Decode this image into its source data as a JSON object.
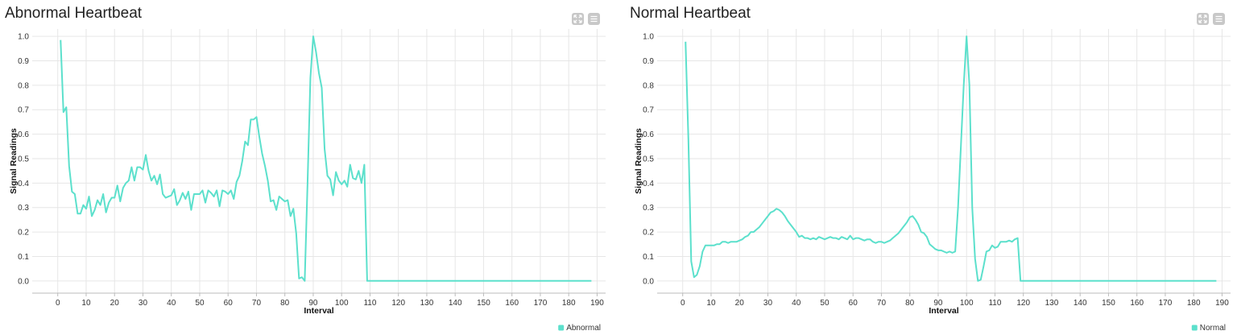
{
  "charts": [
    {
      "title": "Abnormal Heartbeat",
      "chart_data": {
        "type": "line",
        "title": "Abnormal Heartbeat",
        "xlabel": "Interval",
        "ylabel": "Signal Readings",
        "xlim": [
          -9,
          193
        ],
        "ylim": [
          -0.05,
          1.03
        ],
        "x_ticks": [
          0,
          10,
          20,
          30,
          40,
          50,
          60,
          70,
          80,
          90,
          100,
          110,
          120,
          130,
          140,
          150,
          160,
          170,
          180,
          190
        ],
        "y_ticks": [
          0.0,
          0.1,
          0.2,
          0.3,
          0.4,
          0.5,
          0.6,
          0.7,
          0.8,
          0.9,
          1.0
        ],
        "y_tick_labels": [
          "0.0",
          "0.1",
          "0.2",
          "0.3",
          "0.4",
          "0.5",
          "0.6",
          "0.7",
          "0.8",
          "0.9",
          "1.0"
        ],
        "grid": true,
        "legend_position": "bottom-right",
        "series": [
          {
            "name": "Abnormal",
            "color": "#5ce0cc",
            "x_start": 1,
            "values": [
              0.985,
              0.69,
              0.71,
              0.47,
              0.365,
              0.355,
              0.275,
              0.275,
              0.31,
              0.295,
              0.345,
              0.265,
              0.29,
              0.33,
              0.31,
              0.355,
              0.28,
              0.32,
              0.34,
              0.34,
              0.39,
              0.325,
              0.38,
              0.4,
              0.41,
              0.465,
              0.41,
              0.465,
              0.465,
              0.455,
              0.515,
              0.45,
              0.41,
              0.43,
              0.395,
              0.435,
              0.355,
              0.34,
              0.345,
              0.35,
              0.375,
              0.31,
              0.33,
              0.36,
              0.335,
              0.365,
              0.29,
              0.355,
              0.355,
              0.355,
              0.37,
              0.32,
              0.37,
              0.36,
              0.345,
              0.37,
              0.305,
              0.37,
              0.365,
              0.355,
              0.37,
              0.335,
              0.405,
              0.43,
              0.49,
              0.57,
              0.555,
              0.66,
              0.66,
              0.67,
              0.59,
              0.52,
              0.47,
              0.41,
              0.325,
              0.33,
              0.29,
              0.345,
              0.335,
              0.325,
              0.33,
              0.265,
              0.295,
              0.195,
              0.01,
              0.015,
              0.0,
              0.4,
              0.83,
              1.0,
              0.935,
              0.85,
              0.79,
              0.54,
              0.43,
              0.415,
              0.35,
              0.445,
              0.41,
              0.395,
              0.41,
              0.385,
              0.475,
              0.42,
              0.415,
              0.45,
              0.4,
              0.475,
              0.0,
              0.0,
              0.0,
              0.0,
              0.0,
              0.0,
              0.0,
              0.0,
              0.0,
              0.0,
              0.0,
              0.0,
              0.0,
              0.0,
              0.0,
              0.0,
              0.0,
              0.0,
              0.0,
              0.0,
              0.0,
              0.0,
              0.0,
              0.0,
              0.0,
              0.0,
              0.0,
              0.0,
              0.0,
              0.0,
              0.0,
              0.0,
              0.0,
              0.0,
              0.0,
              0.0,
              0.0,
              0.0,
              0.0,
              0.0,
              0.0,
              0.0,
              0.0,
              0.0,
              0.0,
              0.0,
              0.0,
              0.0,
              0.0,
              0.0,
              0.0,
              0.0,
              0.0,
              0.0,
              0.0,
              0.0,
              0.0,
              0.0,
              0.0,
              0.0,
              0.0,
              0.0,
              0.0,
              0.0,
              0.0,
              0.0,
              0.0,
              0.0,
              0.0,
              0.0,
              0.0,
              0.0,
              0.0,
              0.0,
              0.0,
              0.0,
              0.0,
              0.0,
              0.0,
              0.0
            ]
          }
        ]
      }
    },
    {
      "title": "Normal Heartbeat",
      "chart_data": {
        "type": "line",
        "title": "Normal Heartbeat",
        "xlabel": "Interval",
        "ylabel": "Signal Readings",
        "xlim": [
          -9,
          193
        ],
        "ylim": [
          -0.05,
          1.03
        ],
        "x_ticks": [
          0,
          10,
          20,
          30,
          40,
          50,
          60,
          70,
          80,
          90,
          100,
          110,
          120,
          130,
          140,
          150,
          160,
          170,
          180,
          190
        ],
        "y_ticks": [
          0.0,
          0.1,
          0.2,
          0.3,
          0.4,
          0.5,
          0.6,
          0.7,
          0.8,
          0.9,
          1.0
        ],
        "y_tick_labels": [
          "0.0",
          "0.1",
          "0.2",
          "0.3",
          "0.4",
          "0.5",
          "0.6",
          "0.7",
          "0.8",
          "0.9",
          "1.0"
        ],
        "grid": true,
        "legend_position": "bottom-right",
        "series": [
          {
            "name": "Normal",
            "color": "#5ce0cc",
            "x_start": 1,
            "values": [
              0.978,
              0.58,
              0.08,
              0.015,
              0.025,
              0.06,
              0.12,
              0.145,
              0.145,
              0.145,
              0.145,
              0.15,
              0.15,
              0.16,
              0.16,
              0.155,
              0.16,
              0.16,
              0.16,
              0.165,
              0.17,
              0.18,
              0.185,
              0.2,
              0.2,
              0.21,
              0.22,
              0.235,
              0.25,
              0.265,
              0.28,
              0.285,
              0.295,
              0.29,
              0.28,
              0.265,
              0.245,
              0.23,
              0.215,
              0.2,
              0.18,
              0.185,
              0.175,
              0.175,
              0.17,
              0.175,
              0.17,
              0.18,
              0.175,
              0.17,
              0.175,
              0.18,
              0.175,
              0.175,
              0.17,
              0.18,
              0.175,
              0.17,
              0.185,
              0.17,
              0.175,
              0.175,
              0.17,
              0.165,
              0.17,
              0.17,
              0.16,
              0.155,
              0.16,
              0.16,
              0.155,
              0.16,
              0.165,
              0.175,
              0.185,
              0.195,
              0.21,
              0.225,
              0.24,
              0.26,
              0.265,
              0.25,
              0.23,
              0.2,
              0.195,
              0.18,
              0.15,
              0.14,
              0.13,
              0.125,
              0.125,
              0.12,
              0.115,
              0.12,
              0.115,
              0.12,
              0.3,
              0.55,
              0.8,
              1.0,
              0.8,
              0.3,
              0.09,
              0.0,
              0.005,
              0.06,
              0.12,
              0.125,
              0.145,
              0.135,
              0.14,
              0.16,
              0.16,
              0.16,
              0.165,
              0.16,
              0.17,
              0.175,
              0.0,
              0.0,
              0.0,
              0.0,
              0.0,
              0.0,
              0.0,
              0.0,
              0.0,
              0.0,
              0.0,
              0.0,
              0.0,
              0.0,
              0.0,
              0.0,
              0.0,
              0.0,
              0.0,
              0.0,
              0.0,
              0.0,
              0.0,
              0.0,
              0.0,
              0.0,
              0.0,
              0.0,
              0.0,
              0.0,
              0.0,
              0.0,
              0.0,
              0.0,
              0.0,
              0.0,
              0.0,
              0.0,
              0.0,
              0.0,
              0.0,
              0.0,
              0.0,
              0.0,
              0.0,
              0.0,
              0.0,
              0.0,
              0.0,
              0.0,
              0.0,
              0.0,
              0.0,
              0.0,
              0.0,
              0.0,
              0.0,
              0.0,
              0.0,
              0.0,
              0.0,
              0.0,
              0.0,
              0.0,
              0.0,
              0.0,
              0.0,
              0.0,
              0.0,
              0.0
            ]
          }
        ]
      }
    }
  ],
  "toolbar": {
    "expand_icon": "expand-icon",
    "menu_icon": "menu-icon"
  },
  "colors": {
    "series": "#5ce0cc",
    "grid": "#e6e6e6",
    "axis": "#bbbbbb"
  }
}
